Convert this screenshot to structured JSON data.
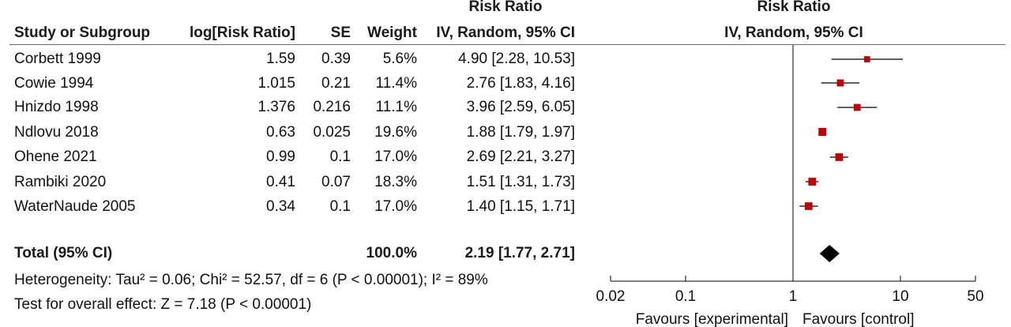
{
  "headers": {
    "rr_top": "Risk Ratio",
    "plot_top": "Risk Ratio",
    "study": "Study or Subgroup",
    "logrr": "log[Risk Ratio]",
    "se": "SE",
    "weight": "Weight",
    "rr_method": "IV, Random, 95% CI",
    "plot_method": "IV, Random, 95% CI"
  },
  "rows": [
    {
      "study": "Corbett 1999",
      "logrr": "1.59",
      "se": "0.39",
      "weight": "5.6%",
      "ci": "4.90 [2.28, 10.53]"
    },
    {
      "study": "Cowie 1994",
      "logrr": "1.015",
      "se": "0.21",
      "weight": "11.4%",
      "ci": "2.76 [1.83, 4.16]"
    },
    {
      "study": "Hnizdo 1998",
      "logrr": "1.376",
      "se": "0.216",
      "weight": "11.1%",
      "ci": "3.96 [2.59, 6.05]"
    },
    {
      "study": "Ndlovu 2018",
      "logrr": "0.63",
      "se": "0.025",
      "weight": "19.6%",
      "ci": "1.88 [1.79, 1.97]"
    },
    {
      "study": "Ohene 2021",
      "logrr": "0.99",
      "se": "0.1",
      "weight": "17.0%",
      "ci": "2.69 [2.21, 3.27]"
    },
    {
      "study": "Rambiki 2020",
      "logrr": "0.41",
      "se": "0.07",
      "weight": "18.3%",
      "ci": "1.51 [1.31, 1.73]"
    },
    {
      "study": "WaterNaude 2005",
      "logrr": "0.34",
      "se": "0.1",
      "weight": "17.0%",
      "ci": "1.40 [1.15, 1.71]"
    }
  ],
  "total": {
    "label": "Total (95% CI)",
    "weight": "100.0%",
    "ci": "2.19 [1.77, 2.71]"
  },
  "heterogeneity": "Heterogeneity: Tau² = 0.06; Chi² = 52.57, df = 6 (P < 0.00001); I² = 89%",
  "overall_effect": "Test for overall effect: Z = 7.18 (P < 0.00001)",
  "favours_left": "Favours [experimental]",
  "favours_right": "Favours [control]",
  "colors": {
    "marker": "#c00000",
    "line": "#000000",
    "rule": "#6d6d6d"
  },
  "chart_data": {
    "type": "forest",
    "scale": "log",
    "xlim": [
      0.02,
      50
    ],
    "ticks": [
      0.02,
      0.1,
      1,
      10,
      50
    ],
    "tick_labels": [
      "0.02",
      "0.1",
      "1",
      "10",
      "50"
    ],
    "reference": 1,
    "studies": [
      {
        "name": "Corbett 1999",
        "rr": 4.9,
        "lo": 2.28,
        "hi": 10.53,
        "weight": 5.6
      },
      {
        "name": "Cowie 1994",
        "rr": 2.76,
        "lo": 1.83,
        "hi": 4.16,
        "weight": 11.4
      },
      {
        "name": "Hnizdo 1998",
        "rr": 3.96,
        "lo": 2.59,
        "hi": 6.05,
        "weight": 11.1
      },
      {
        "name": "Ndlovu 2018",
        "rr": 1.88,
        "lo": 1.79,
        "hi": 1.97,
        "weight": 19.6
      },
      {
        "name": "Ohene 2021",
        "rr": 2.69,
        "lo": 2.21,
        "hi": 3.27,
        "weight": 17.0
      },
      {
        "name": "Rambiki 2020",
        "rr": 1.51,
        "lo": 1.31,
        "hi": 1.73,
        "weight": 18.3
      },
      {
        "name": "WaterNaude 2005",
        "rr": 1.4,
        "lo": 1.15,
        "hi": 1.71,
        "weight": 17.0
      }
    ],
    "pooled": {
      "rr": 2.19,
      "lo": 1.77,
      "hi": 2.71
    }
  }
}
